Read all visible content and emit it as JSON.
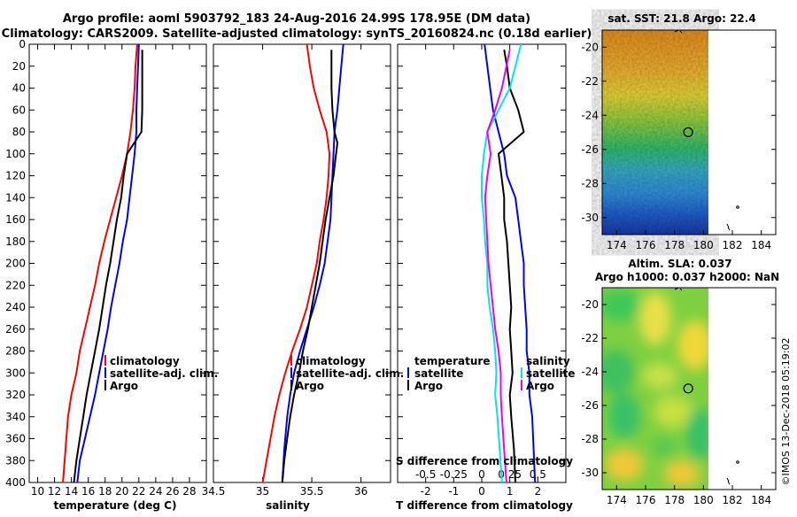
{
  "title": {
    "line1": "Argo profile: aoml 5903792_183 24-Aug-2016 24.99S 178.95E (DM data)",
    "line2": "Climatology: CARS2009. Satellite-adjusted climatology: synTS_20160824.nc (0.18d earlier)"
  },
  "colors": {
    "climatology": "#ff0000",
    "satellite": "#0000ff",
    "argo": "#000000",
    "salinity_diff": "#00e5ee",
    "temperature_diff": "#ee00ee"
  },
  "chart_data": [
    {
      "type": "line",
      "name": "temperature",
      "xlabel": "temperature (deg C)",
      "ylabel": "",
      "xlim": [
        9,
        30
      ],
      "ylim": [
        400,
        0
      ],
      "xticks": [
        "10",
        "12",
        "14",
        "16",
        "18",
        "20",
        "22",
        "24",
        "26",
        "28"
      ],
      "xtick_values": [
        10,
        12,
        14,
        16,
        18,
        20,
        22,
        24,
        26,
        28
      ],
      "yticks": [
        "0",
        "20",
        "40",
        "60",
        "80",
        "100",
        "120",
        "140",
        "160",
        "180",
        "200",
        "220",
        "240",
        "260",
        "280",
        "300",
        "320",
        "340",
        "360",
        "380",
        "400"
      ],
      "ytick_values": [
        0,
        20,
        40,
        60,
        80,
        100,
        120,
        140,
        160,
        180,
        200,
        220,
        240,
        260,
        280,
        300,
        320,
        340,
        360,
        380,
        400
      ],
      "legend": [
        "climatology",
        "satellite-adj. clim.",
        "Argo"
      ],
      "series": [
        {
          "name": "climatology",
          "color_key": "climatology",
          "x": [
            21.8,
            21.6,
            21.5,
            21.3,
            21.0,
            20.6,
            20.0,
            19.3,
            18.6,
            17.9,
            17.3,
            16.8,
            16.2,
            15.6,
            15.0,
            14.6,
            14.0,
            13.6,
            13.0
          ],
          "y": [
            0,
            20,
            40,
            60,
            80,
            100,
            120,
            140,
            160,
            180,
            200,
            220,
            240,
            260,
            280,
            300,
            320,
            340,
            400
          ]
        },
        {
          "name": "satellite-adj. clim.",
          "color_key": "satellite",
          "x": [
            22.0,
            21.9,
            21.8,
            21.7,
            21.7,
            21.5,
            21.2,
            20.9,
            20.6,
            20.1,
            19.7,
            19.2,
            18.7,
            18.3,
            17.8,
            17.3,
            16.8,
            16.2,
            15.6,
            15.0,
            14.7
          ],
          "y": [
            0,
            20,
            40,
            60,
            80,
            100,
            120,
            140,
            160,
            180,
            200,
            220,
            240,
            260,
            280,
            300,
            320,
            340,
            360,
            380,
            400
          ]
        },
        {
          "name": "Argo",
          "color_key": "argo",
          "x": [
            22.4,
            22.4,
            22.4,
            22.4,
            22.3,
            20.6,
            20.2,
            19.9,
            19.4,
            19.0,
            18.6,
            18.1,
            17.7,
            17.3,
            16.8,
            16.3,
            15.8,
            15.4,
            15.0,
            14.6,
            14.3
          ],
          "y": [
            5,
            20,
            40,
            60,
            80,
            100,
            120,
            140,
            160,
            180,
            200,
            220,
            240,
            260,
            280,
            300,
            320,
            340,
            360,
            380,
            400
          ]
        }
      ]
    },
    {
      "type": "line",
      "name": "salinity",
      "xlabel": "salinity",
      "xlim": [
        34.5,
        36.3
      ],
      "ylim": [
        400,
        0
      ],
      "xticks": [
        "34.5",
        "35",
        "35.5",
        "36"
      ],
      "xtick_values": [
        34.5,
        35,
        35.5,
        36
      ],
      "legend": [
        "climatology",
        "satellite-adj. clim.",
        "Argo"
      ],
      "series": [
        {
          "name": "climatology",
          "color_key": "climatology",
          "x": [
            35.45,
            35.48,
            35.52,
            35.58,
            35.65,
            35.68,
            35.67,
            35.65,
            35.62,
            35.58,
            35.55,
            35.5,
            35.45,
            35.38,
            35.3,
            35.23,
            35.17,
            35.12,
            35.06,
            35.0
          ],
          "y": [
            0,
            20,
            40,
            60,
            80,
            100,
            120,
            140,
            160,
            180,
            200,
            220,
            240,
            260,
            280,
            300,
            320,
            340,
            370,
            400
          ]
        },
        {
          "name": "satellite-adj. clim.",
          "color_key": "satellite",
          "x": [
            35.82,
            35.8,
            35.78,
            35.76,
            35.73,
            35.72,
            35.71,
            35.7,
            35.69,
            35.66,
            35.63,
            35.58,
            35.52,
            35.45,
            35.38,
            35.32,
            35.28,
            35.25,
            35.22,
            35.2
          ],
          "y": [
            0,
            20,
            40,
            60,
            80,
            100,
            120,
            140,
            160,
            180,
            200,
            220,
            240,
            260,
            280,
            300,
            320,
            340,
            370,
            400
          ]
        },
        {
          "name": "Argo",
          "color_key": "argo",
          "x": [
            35.7,
            35.7,
            35.7,
            35.71,
            35.73,
            35.76,
            35.72,
            35.68,
            35.64,
            35.61,
            35.58,
            35.54,
            35.5,
            35.46,
            35.41,
            35.37,
            35.32,
            35.28,
            35.25,
            35.22,
            35.2
          ],
          "y": [
            5,
            20,
            40,
            60,
            80,
            90,
            120,
            140,
            160,
            180,
            200,
            220,
            240,
            260,
            280,
            300,
            320,
            340,
            360,
            380,
            400
          ]
        }
      ]
    },
    {
      "type": "line",
      "name": "differences",
      "xlabel": "T difference from climatology",
      "xlabel_top": "S difference from climatology",
      "xlim": [
        -3,
        3
      ],
      "ylim": [
        400,
        0
      ],
      "xticks": [
        "-2",
        "-1",
        "0",
        "1",
        "2"
      ],
      "xtick_values": [
        -2,
        -1,
        0,
        1,
        2
      ],
      "sticks": [
        "-0.5",
        "-0.25",
        "0",
        "0.25",
        "0.5"
      ],
      "stick_values": [
        -0.5,
        -0.25,
        0,
        0.25,
        0.5
      ],
      "legend_temperature_title": "temperature",
      "legend_salinity_title": "salinity",
      "legend_temperature": [
        "satellite",
        "Argo"
      ],
      "legend_salinity": [
        "satellite",
        "Argo"
      ],
      "series": [
        {
          "name": "temperature satellite",
          "color_key": "satellite",
          "x": [
            0.1,
            0.2,
            0.3,
            0.4,
            0.6,
            0.8,
            0.9,
            1.2,
            1.3,
            1.4,
            1.5,
            1.5,
            1.55,
            1.6,
            1.6,
            1.7,
            1.7,
            1.8,
            1.85,
            1.9
          ],
          "y": [
            0,
            20,
            40,
            60,
            80,
            100,
            120,
            140,
            160,
            180,
            200,
            220,
            240,
            260,
            280,
            300,
            320,
            340,
            370,
            400
          ]
        },
        {
          "name": "temperature Argo",
          "color_key": "argo",
          "x": [
            0.8,
            0.9,
            1.0,
            1.3,
            1.5,
            0.6,
            0.7,
            0.8,
            0.8,
            0.9,
            0.95,
            1.0,
            1.05,
            1.0,
            1.05,
            1.1,
            1.0,
            1.05,
            1.15,
            1.2
          ],
          "y": [
            5,
            20,
            40,
            60,
            80,
            100,
            120,
            140,
            160,
            180,
            200,
            220,
            240,
            260,
            280,
            300,
            320,
            340,
            370,
            400
          ]
        },
        {
          "name": "salinity satellite",
          "color_key": "salinity_diff",
          "x": [
            0.35,
            0.3,
            0.25,
            0.15,
            0.05,
            0.02,
            0.0,
            0.0,
            0.02,
            0.03,
            0.05,
            0.05,
            0.07,
            0.1,
            0.12,
            0.13,
            0.12,
            0.14,
            0.16,
            0.18
          ],
          "y": [
            0,
            20,
            40,
            60,
            80,
            100,
            120,
            140,
            160,
            180,
            200,
            220,
            240,
            260,
            280,
            300,
            320,
            340,
            370,
            400
          ]
        },
        {
          "name": "salinity Argo",
          "color_key": "temperature_diff",
          "x": [
            0.25,
            0.22,
            0.18,
            0.12,
            0.05,
            0.08,
            0.05,
            0.03,
            0.04,
            0.05,
            0.06,
            0.08,
            0.1,
            0.12,
            0.15,
            0.17,
            0.17,
            0.18,
            0.2,
            0.22
          ],
          "y": [
            5,
            20,
            40,
            60,
            80,
            100,
            120,
            140,
            160,
            180,
            200,
            220,
            240,
            260,
            280,
            300,
            320,
            340,
            370,
            400
          ]
        }
      ]
    },
    {
      "type": "heatmap",
      "name": "sst_map",
      "title": "sat. SST: 21.8 Argo: 22.4",
      "xticks": [
        "174",
        "176",
        "178",
        "180",
        "182",
        "184"
      ],
      "xtick_values": [
        174,
        176,
        178,
        180,
        182,
        184
      ],
      "yticks": [
        "-20",
        "-22",
        "-24",
        "-26",
        "-28",
        "-30"
      ],
      "ytick_values": [
        -20,
        -22,
        -24,
        -26,
        -28,
        -30
      ],
      "xlim": [
        173,
        185
      ],
      "ylim": [
        -31,
        -19
      ],
      "argo_location": [
        178.95,
        -24.99
      ]
    },
    {
      "type": "heatmap",
      "name": "sla_map",
      "title": "Altim. SLA: 0.037",
      "subtitle": "Argo h1000: 0.037 h2000: NaN",
      "xticks": [
        "174",
        "176",
        "178",
        "180",
        "182",
        "184"
      ],
      "xtick_values": [
        174,
        176,
        178,
        180,
        182,
        184
      ],
      "yticks": [
        "-20",
        "-22",
        "-24",
        "-26",
        "-28",
        "-30"
      ],
      "ytick_values": [
        -20,
        -22,
        -24,
        -26,
        -28,
        -30
      ],
      "xlim": [
        173,
        185
      ],
      "ylim": [
        -31,
        -19
      ],
      "argo_location": [
        178.95,
        -24.99
      ]
    }
  ],
  "credit": "©IMOS 13-Dec-2018 05:19:02"
}
